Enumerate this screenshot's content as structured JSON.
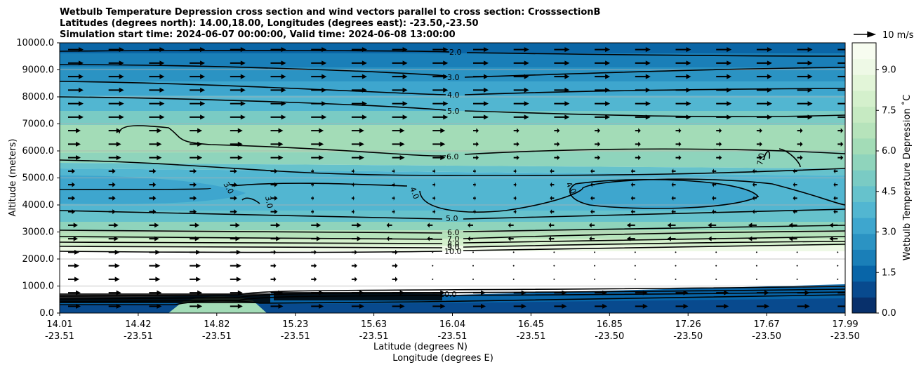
{
  "chart_data": {
    "type": "contour",
    "title_lines": [
      "Wetbulb Temperature Depression cross section and wind vectors parallel to cross section: CrosssectionB",
      "Latitudes (degrees north): 14.00,18.00, Longitudes (degrees east): -23.50,-23.50",
      "Simulation start time: 2024-06-07 00:00:00, Valid time: 2024-06-08 13:00:00"
    ],
    "ylabel": "Altitude (meters)",
    "xlabel_lat": "Latitude (degrees N)",
    "xlabel_lon": "Longitude (degrees E)",
    "ylim": [
      0,
      10000
    ],
    "y_ticks": [
      "0.0",
      "1000.0",
      "2000.0",
      "3000.0",
      "4000.0",
      "5000.0",
      "6000.0",
      "7000.0",
      "8000.0",
      "9000.0",
      "10000.0"
    ],
    "x_ticks": [
      {
        "lat": "14.01",
        "lon": "-23.51"
      },
      {
        "lat": "14.42",
        "lon": "-23.51"
      },
      {
        "lat": "14.82",
        "lon": "-23.51"
      },
      {
        "lat": "15.23",
        "lon": "-23.51"
      },
      {
        "lat": "15.63",
        "lon": "-23.51"
      },
      {
        "lat": "16.04",
        "lon": "-23.51"
      },
      {
        "lat": "16.45",
        "lon": "-23.51"
      },
      {
        "lat": "16.85",
        "lon": "-23.50"
      },
      {
        "lat": "17.26",
        "lon": "-23.50"
      },
      {
        "lat": "17.67",
        "lon": "-23.50"
      },
      {
        "lat": "17.99",
        "lon": "-23.50"
      }
    ],
    "colorbar": {
      "label": "Wetbulb Temperature Depression ˚C",
      "range": [
        0,
        10
      ],
      "ticks": [
        "0.0",
        "1.5",
        "3.0",
        "4.5",
        "6.0",
        "7.5",
        "9.0"
      ],
      "colors": [
        "#08306b",
        "#084a8e",
        "#0865a8",
        "#1a7fb8",
        "#2b93c3",
        "#3ea6ce",
        "#52b6d1",
        "#66c2cc",
        "#7acbc4",
        "#8fd4bc",
        "#a3dcb7",
        "#b6e3bb",
        "#c6eac2",
        "#d4f0cc",
        "#e2f5d8",
        "#eef9e6",
        "#f7fcf0"
      ]
    },
    "quiver_key": "10 m/s",
    "contour_labels": [
      "2.0",
      "3.0",
      "4.0",
      "5.0",
      "6.0",
      "7.0",
      "4.0",
      "3.0",
      "3.0",
      "4.0",
      "4.0",
      "7.0",
      "5.0",
      "6.0",
      "7.0",
      "8.0",
      "9.0",
      "10.0",
      "10.0"
    ]
  }
}
